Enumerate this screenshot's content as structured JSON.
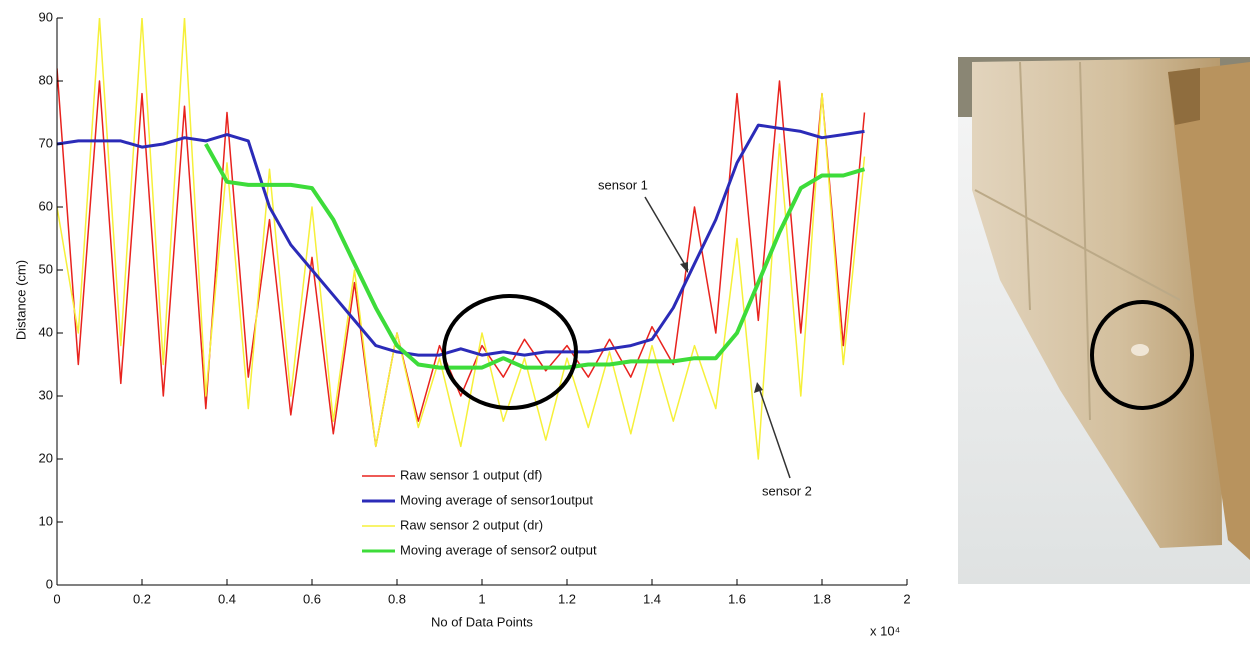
{
  "chart_data": {
    "type": "line",
    "x_label": "No of Data Points",
    "y_label": "Distance (cm)",
    "x_multiplier": "x 10⁴",
    "xlim": [
      0,
      2
    ],
    "xticks": [
      0,
      0.2,
      0.4,
      0.6,
      0.8,
      1,
      1.2,
      1.4,
      1.6,
      1.8,
      2
    ],
    "ylim": [
      0,
      90
    ],
    "yticks": [
      0,
      10,
      20,
      30,
      40,
      50,
      60,
      70,
      80,
      90
    ],
    "grid": false,
    "x": [
      0,
      0.05,
      0.1,
      0.15,
      0.2,
      0.25,
      0.3,
      0.35,
      0.4,
      0.45,
      0.5,
      0.55,
      0.6,
      0.65,
      0.7,
      0.75,
      0.8,
      0.85,
      0.9,
      0.95,
      1,
      1.05,
      1.1,
      1.15,
      1.2,
      1.25,
      1.3,
      1.35,
      1.4,
      1.45,
      1.5,
      1.55,
      1.6,
      1.65,
      1.7,
      1.75,
      1.8,
      1.85,
      1.9
    ],
    "series": [
      {
        "name": "Raw sensor 1 output (df)",
        "color": "#e8231e",
        "width": 1.5,
        "values": [
          82,
          35,
          80,
          32,
          78,
          30,
          76,
          28,
          75,
          33,
          58,
          27,
          52,
          24,
          48,
          22,
          40,
          26,
          38,
          30,
          38,
          33,
          39,
          34,
          38,
          33,
          39,
          33,
          41,
          35,
          60,
          40,
          78,
          42,
          80,
          40,
          78,
          38,
          75
        ]
      },
      {
        "name": "Raw sensor 2 output (dr)",
        "color": "#f6f03a",
        "width": 1.5,
        "values": [
          60,
          40,
          90,
          38,
          90,
          35,
          90,
          30,
          67,
          28,
          66,
          30,
          60,
          26,
          50,
          22,
          40,
          25,
          36,
          22,
          40,
          26,
          36,
          23,
          36,
          25,
          37,
          24,
          38,
          26,
          38,
          28,
          55,
          20,
          70,
          30,
          78,
          35,
          68
        ]
      },
      {
        "name": "Moving average of sensor1output",
        "color": "#2b2bb8",
        "width": 3,
        "values": [
          70,
          70.5,
          70.5,
          70.5,
          69.5,
          70,
          71,
          70.5,
          71.5,
          70.5,
          60,
          54,
          50,
          46,
          42,
          38,
          37,
          36.5,
          36.5,
          37.5,
          36.5,
          37,
          36.5,
          37,
          37,
          37,
          37.5,
          38,
          39,
          44,
          51,
          58,
          67,
          73,
          72.5,
          72,
          71,
          71.5,
          72
        ]
      },
      {
        "name": "Moving average of sensor2 output",
        "color": "#3ddc3a",
        "width": 4,
        "values": [
          null,
          null,
          null,
          null,
          null,
          null,
          null,
          70,
          64,
          63.5,
          63.5,
          63.5,
          63,
          58,
          51,
          44,
          38,
          35,
          34.5,
          34.5,
          34.5,
          36,
          34.5,
          34.5,
          34.5,
          35,
          35,
          35.5,
          35.5,
          35.5,
          36,
          36,
          40,
          48,
          56,
          63,
          65,
          65,
          66
        ]
      }
    ],
    "annotations": [
      "sensor 1",
      "sensor 2"
    ]
  }
}
